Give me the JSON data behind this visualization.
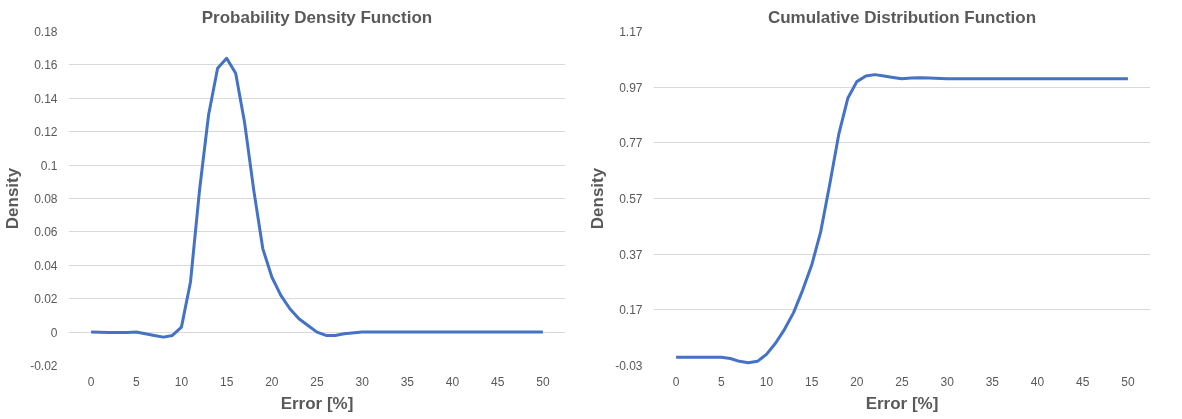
{
  "chart_data": [
    {
      "type": "line",
      "title": "Probability Density Function",
      "xlabel": "Error [%]",
      "ylabel": "Density",
      "x": [
        0,
        2,
        4,
        5,
        7,
        8,
        9,
        10,
        11,
        12,
        13,
        14,
        15,
        16,
        17,
        18,
        19,
        20,
        21,
        22,
        23,
        24,
        25,
        26,
        27,
        28,
        30,
        35,
        40,
        45,
        50
      ],
      "series": [
        {
          "color": "#4472c4",
          "values": [
            0,
            -0.0003,
            -0.0003,
            0,
            -0.002,
            -0.003,
            -0.002,
            0.003,
            0.03,
            0.085,
            0.13,
            0.158,
            0.164,
            0.155,
            0.125,
            0.085,
            0.05,
            0.033,
            0.022,
            0.014,
            0.008,
            0.004,
            0,
            -0.002,
            -0.002,
            -0.001,
            0,
            0,
            0,
            0,
            0
          ]
        }
      ],
      "xlim": [
        -2.5,
        52.5
      ],
      "xticks": [
        0,
        5,
        10,
        15,
        20,
        25,
        30,
        35,
        40,
        45,
        50
      ],
      "ylim": [
        -0.02,
        0.18
      ],
      "yticks": [
        -0.02,
        0,
        0.02,
        0.04,
        0.06,
        0.08,
        0.1,
        0.12,
        0.14,
        0.16,
        0.18
      ],
      "grid": "y",
      "marker": "none",
      "line_style": "solid"
    },
    {
      "type": "line",
      "title": "Cumulative Distribution Function",
      "xlabel": "Error [%]",
      "ylabel": "Density",
      "x": [
        0,
        5,
        6,
        7,
        8,
        9,
        10,
        11,
        12,
        13,
        14,
        15,
        16,
        17,
        18,
        19,
        20,
        21,
        22,
        23,
        24,
        25,
        26,
        27,
        28,
        30,
        35,
        40,
        45,
        50
      ],
      "series": [
        {
          "color": "#4472c4",
          "values": [
            0,
            0,
            -0.005,
            -0.015,
            -0.02,
            -0.015,
            0.01,
            0.05,
            0.1,
            0.16,
            0.24,
            0.33,
            0.45,
            0.62,
            0.8,
            0.93,
            0.99,
            1.01,
            1.015,
            1.01,
            1.005,
            1.0,
            1.003,
            1.004,
            1.003,
            1.0,
            1.0,
            1.0,
            1.0,
            1.0
          ]
        }
      ],
      "xlim": [
        -2.5,
        52.5
      ],
      "xticks": [
        0,
        5,
        10,
        15,
        20,
        25,
        30,
        35,
        40,
        45,
        50
      ],
      "ylim": [
        -0.03,
        1.17
      ],
      "yticks": [
        -0.03,
        0.17,
        0.37,
        0.57,
        0.77,
        0.97,
        1.17
      ],
      "grid": "y",
      "marker": "none",
      "line_style": "solid"
    }
  ]
}
